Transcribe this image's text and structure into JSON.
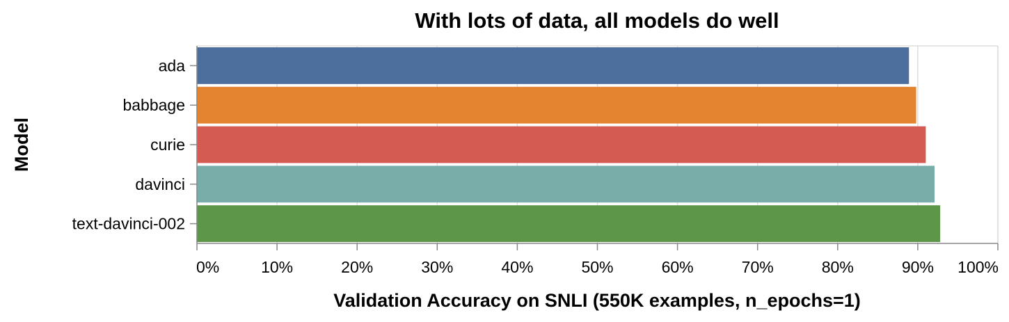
{
  "chart_data": {
    "type": "bar",
    "orientation": "horizontal",
    "title": "With lots of data, all models do well",
    "xlabel": "Validation Accuracy on SNLI (550K examples, n_epochs=1)",
    "ylabel": "Model",
    "xlim": [
      0,
      1
    ],
    "x_ticks": [
      {
        "value": 0.0,
        "label": "0%"
      },
      {
        "value": 0.1,
        "label": "10%"
      },
      {
        "value": 0.2,
        "label": "20%"
      },
      {
        "value": 0.3,
        "label": "30%"
      },
      {
        "value": 0.4,
        "label": "40%"
      },
      {
        "value": 0.5,
        "label": "50%"
      },
      {
        "value": 0.6,
        "label": "60%"
      },
      {
        "value": 0.7,
        "label": "70%"
      },
      {
        "value": 0.8,
        "label": "80%"
      },
      {
        "value": 0.9,
        "label": "90%"
      },
      {
        "value": 1.0,
        "label": "100%"
      }
    ],
    "grid": true,
    "categories": [
      "ada",
      "babbage",
      "curie",
      "davinci",
      "text-davinci-002"
    ],
    "values": [
      0.889,
      0.898,
      0.91,
      0.921,
      0.928
    ],
    "colors": [
      "#4C6E9C",
      "#E4832D",
      "#D35B51",
      "#78ADA9",
      "#5D9649"
    ]
  }
}
